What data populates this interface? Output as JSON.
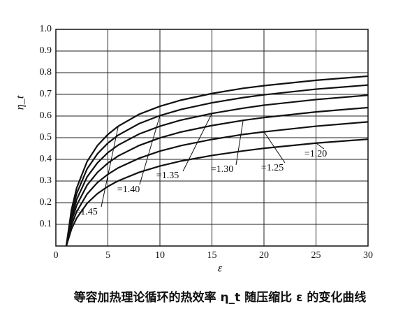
{
  "chart_data": {
    "type": "line",
    "title": "等容加热理论循环的热效率 η_t 随压缩比 ε 的变化曲线",
    "x_label": "ε",
    "y_label": "η_t",
    "x": [
      1,
      1.5,
      2,
      3,
      4,
      5,
      6,
      8,
      10,
      12,
      15,
      18,
      20,
      25,
      30
    ],
    "series": [
      {
        "name": "κ=1.45",
        "color": "#111111",
        "values": [
          0,
          0.167,
          0.268,
          0.39,
          0.464,
          0.515,
          0.553,
          0.608,
          0.645,
          0.673,
          0.704,
          0.728,
          0.74,
          0.765,
          0.784
        ]
      },
      {
        "name": "=1.40",
        "color": "#111111",
        "values": [
          0,
          0.15,
          0.242,
          0.356,
          0.426,
          0.475,
          0.512,
          0.565,
          0.602,
          0.63,
          0.661,
          0.685,
          0.698,
          0.724,
          0.743
        ]
      },
      {
        "name": "=1.35",
        "color": "#111111",
        "values": [
          0,
          0.132,
          0.215,
          0.319,
          0.384,
          0.431,
          0.466,
          0.517,
          0.553,
          0.581,
          0.612,
          0.636,
          0.65,
          0.676,
          0.696
        ]
      },
      {
        "name": "=1.30",
        "color": "#111111",
        "values": [
          0,
          0.115,
          0.188,
          0.281,
          0.34,
          0.383,
          0.416,
          0.464,
          0.499,
          0.526,
          0.556,
          0.58,
          0.593,
          0.619,
          0.639
        ]
      },
      {
        "name": "=1.25",
        "color": "#111111",
        "values": [
          0,
          0.096,
          0.159,
          0.24,
          0.293,
          0.331,
          0.361,
          0.405,
          0.438,
          0.463,
          0.492,
          0.515,
          0.527,
          0.553,
          0.573
        ]
      },
      {
        "name": "=1.20",
        "color": "#111111",
        "values": [
          0,
          0.078,
          0.129,
          0.197,
          0.242,
          0.275,
          0.301,
          0.34,
          0.369,
          0.392,
          0.418,
          0.439,
          0.451,
          0.475,
          0.493
        ]
      }
    ],
    "xlim": [
      0,
      30
    ],
    "xticks": [
      0,
      5,
      10,
      15,
      20,
      25,
      30
    ],
    "ylim": [
      0,
      1
    ],
    "yticks": [
      0.1,
      0.2,
      0.3,
      0.4,
      0.5,
      0.6,
      0.7,
      0.8,
      0.9,
      {
        "value": 1,
        "label": "1.0"
      }
    ],
    "grid": true
  }
}
